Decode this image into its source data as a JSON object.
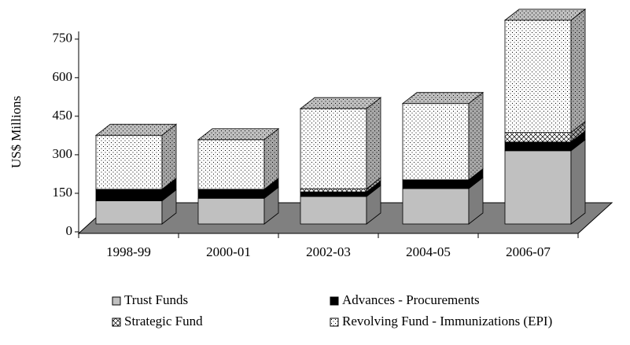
{
  "chart_data": {
    "type": "bar3d_stacked",
    "ylabel": "US$ Millions",
    "categories": [
      "1998-99",
      "2000-01",
      "2002-03",
      "2004-05",
      "2006-07"
    ],
    "series": [
      {
        "name": "Trust Funds",
        "color": "#c0c0c0",
        "values": [
          90,
          100,
          107,
          138,
          285
        ]
      },
      {
        "name": "Advances - Procurements",
        "color": "#000000",
        "values": [
          45,
          35,
          18,
          34,
          34
        ]
      },
      {
        "name": "Strategic Fund",
        "color": "#ffffff",
        "values": [
          0,
          0,
          12,
          0,
          37
        ]
      },
      {
        "name": "Revolving Fund - Immunizations (EPI)",
        "color": "#ffffff",
        "values": [
          210,
          193,
          312,
          297,
          437
        ]
      }
    ],
    "ylim": [
      0,
      780
    ],
    "yticks": [
      0,
      150,
      300,
      450,
      600,
      750
    ]
  }
}
